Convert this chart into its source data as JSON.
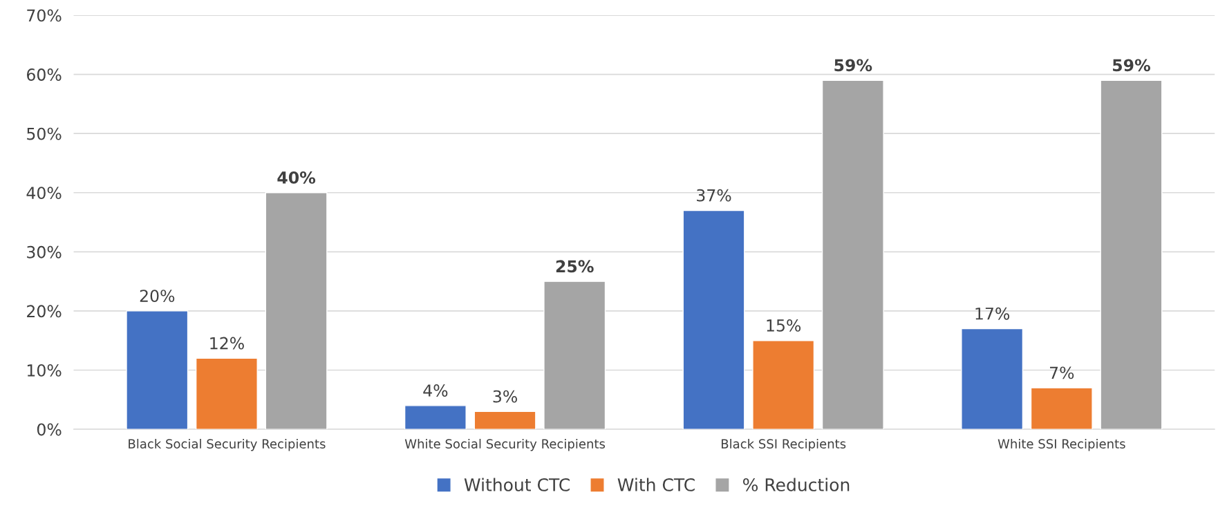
{
  "chart_data": {
    "type": "bar",
    "categories": [
      "Black Social Security Recipients",
      "White Social Security Recipients",
      "Black SSI Recipients",
      "White SSI Recipients"
    ],
    "series": [
      {
        "name": "Without CTC",
        "color": "#4472c4",
        "values": [
          20,
          4,
          37,
          17
        ],
        "value_labels": [
          "20%",
          "4%",
          "37%",
          "17%"
        ]
      },
      {
        "name": "With CTC",
        "color": "#ed7d31",
        "values": [
          12,
          3,
          15,
          7
        ],
        "value_labels": [
          "12%",
          "3%",
          "15%",
          "7%"
        ]
      },
      {
        "name": "% Reduction",
        "color": "#a5a5a5",
        "values": [
          40,
          25,
          59,
          59
        ],
        "value_labels": [
          "40%",
          "25%",
          "59%",
          "59%"
        ]
      }
    ],
    "ylim": [
      0,
      70
    ],
    "yticks": [
      {
        "value": 0,
        "label": "0%"
      },
      {
        "value": 10,
        "label": "10%"
      },
      {
        "value": 20,
        "label": "20%"
      },
      {
        "value": 30,
        "label": "30%"
      },
      {
        "value": 40,
        "label": "40%"
      },
      {
        "value": 50,
        "label": "50%"
      },
      {
        "value": 60,
        "label": "60%"
      },
      {
        "value": 70,
        "label": "70%"
      }
    ],
    "grid": "y",
    "legend": "bottom"
  }
}
